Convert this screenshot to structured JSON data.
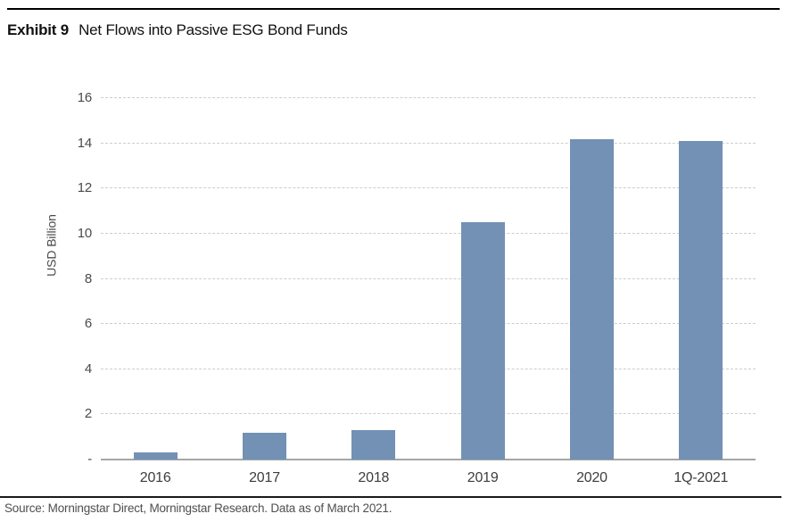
{
  "header": {
    "exhibit_label": "Exhibit 9",
    "title": "Net Flows into Passive ESG Bond Funds"
  },
  "footer": {
    "source": "Source: Morningstar Direct, Morningstar Research. Data as of March 2021."
  },
  "chart_data": {
    "type": "bar",
    "title": "Net Flows into Passive ESG Bond Funds",
    "categories": [
      "2016",
      "2017",
      "2018",
      "2019",
      "2020",
      "1Q-2021"
    ],
    "values": [
      0.3,
      1.2,
      1.3,
      10.5,
      14.2,
      14.1
    ],
    "xlabel": "",
    "ylabel": "USD Billion",
    "ylim": [
      0,
      16
    ],
    "y_tick_step": 2,
    "y_tick_labels": [
      "-",
      "2",
      "4",
      "6",
      "8",
      "10",
      "12",
      "14",
      "16"
    ],
    "zero_tick_label": "-",
    "grid": "horizontal-dashed",
    "legend": "none",
    "bar_color": "#7291b4",
    "gridline_color": "#cdcdcd",
    "baseline_color": "#a6a6a6"
  }
}
